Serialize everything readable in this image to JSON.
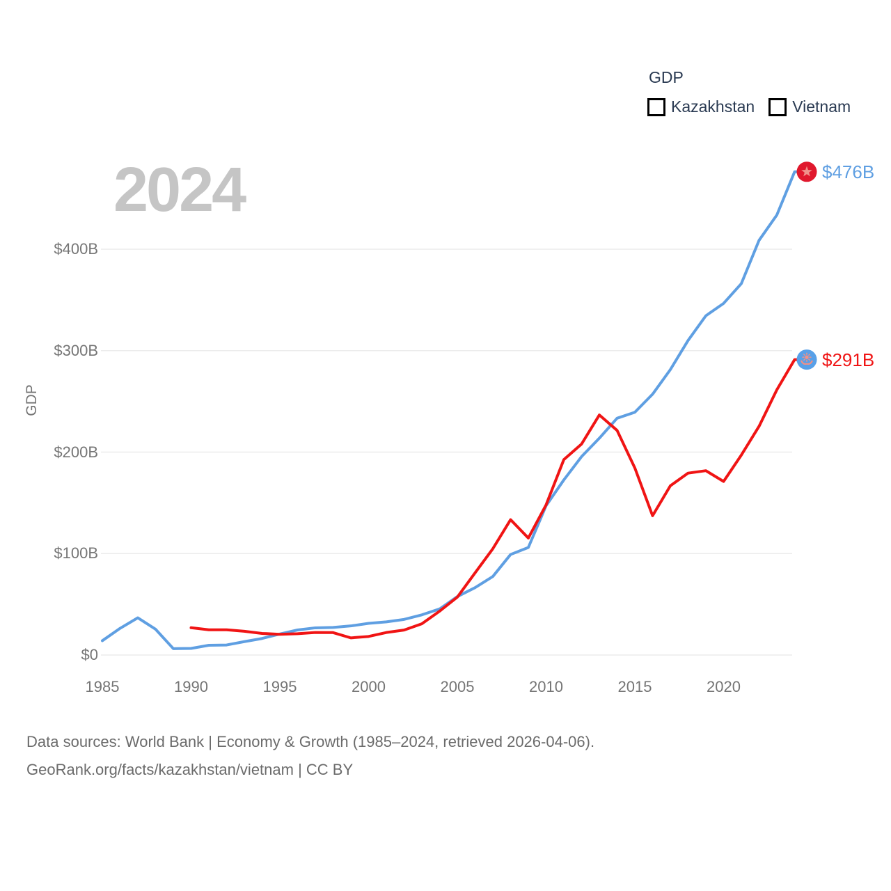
{
  "chart": {
    "watermark": "2024",
    "legend": {
      "title": "GDP",
      "items": [
        {
          "label": "Kazakhstan",
          "color": "#f01414"
        },
        {
          "label": "Vietnam",
          "color": "#5f9fe2"
        }
      ]
    },
    "colors": {
      "grid": "#ececec",
      "axis_text": "#757575",
      "legend_text": "#2a3a52",
      "watermark": "#c5c5c5",
      "footer_text": "#6b6b6b"
    },
    "footer": {
      "line1": "Data sources: World Bank | Economy & Growth (1985–2024, retrieved 2026-04-06).",
      "line2": "GeoRank.org/facts/kazakhstan/vietnam | CC BY"
    }
  },
  "chart_data": {
    "type": "line",
    "title": "GDP",
    "xlabel": "",
    "ylabel": "GDP",
    "x_range": [
      1985,
      2024
    ],
    "ylim": [
      0,
      480
    ],
    "grid": "horizontal-only",
    "legend_position": "top-right",
    "x_ticks": [
      {
        "label": "1985",
        "year": 1985
      },
      {
        "label": "1990",
        "year": 1990
      },
      {
        "label": "1995",
        "year": 1995
      },
      {
        "label": "2000",
        "year": 2000
      },
      {
        "label": "2005",
        "year": 2005
      },
      {
        "label": "2010",
        "year": 2010
      },
      {
        "label": "2015",
        "year": 2015
      },
      {
        "label": "2020",
        "year": 2020
      }
    ],
    "y_ticks": [
      {
        "label": "$0",
        "value": 0
      },
      {
        "label": "$100B",
        "value": 100
      },
      {
        "label": "$200B",
        "value": 200
      },
      {
        "label": "$300B",
        "value": 300
      },
      {
        "label": "$400B",
        "value": 400
      }
    ],
    "series": [
      {
        "name": "Kazakhstan",
        "color": "#f01414",
        "start_year": 1990,
        "values": [
          26.9,
          24.9,
          24.9,
          23.4,
          21.3,
          20.4,
          21.0,
          22.2,
          22.1,
          16.9,
          18.3,
          22.2,
          24.6,
          30.8,
          43.2,
          57.1,
          81.0,
          104.8,
          133.4,
          115.3,
          148.0,
          192.6,
          208.0,
          236.6,
          221.4,
          184.4,
          137.3,
          166.8,
          179.3,
          181.7,
          171.1,
          197.1,
          225.5,
          261.4,
          291.2
        ],
        "end_label": "$291B",
        "marker": {
          "flag": "kazakhstan-flag",
          "circle_color": "#58a0e8",
          "glyph_color": "#f29086"
        }
      },
      {
        "name": "Vietnam",
        "color": "#5f9fe2",
        "start_year": 1985,
        "values": [
          14.1,
          26.3,
          36.7,
          25.4,
          6.3,
          6.5,
          9.6,
          9.9,
          13.2,
          16.3,
          20.7,
          24.7,
          26.8,
          27.2,
          28.7,
          31.2,
          32.7,
          35.1,
          39.6,
          45.4,
          57.6,
          66.4,
          77.4,
          99.1,
          106.0,
          147.2,
          172.6,
          195.6,
          213.7,
          233.4,
          239.3,
          257.1,
          281.3,
          310.1,
          334.4,
          346.6,
          366.1,
          408.8,
          433.7,
          476.3
        ],
        "end_label": "$476B",
        "marker": {
          "flag": "vietnam-flag",
          "circle_color": "#e0182d",
          "glyph_color": "#f0928b"
        }
      }
    ]
  }
}
